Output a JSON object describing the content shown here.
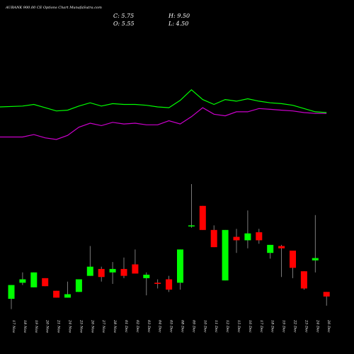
{
  "title": "AUBANK 900.00  CE Options  Chart MunafaSutra.com",
  "ohlc": {
    "c_label": "C: 5.75",
    "h_label": "H: 9.50",
    "o_label": "O: 5.55",
    "l_label": "L: 4.50"
  },
  "colors": {
    "background": "#000000",
    "up": "#00ff00",
    "down": "#ff0000",
    "wick": "#999999",
    "line1": "#00ff00",
    "line2": "#cc00cc",
    "text": "#ffffff"
  },
  "chart_data": {
    "type": "candlestick",
    "title": "AUBANK 900.00  CE Options  Chart MunafaSutra.com",
    "categories": [
      "17 Nov",
      "18 Nov",
      "19 Nov",
      "20 Nov",
      "21 Nov",
      "24 Nov",
      "25 Nov",
      "26 Nov",
      "27 Nov",
      "28 Nov",
      "01 Dec",
      "02 Dec",
      "03 Dec",
      "04 Dec",
      "05 Dec",
      "08 Dec",
      "09 Dec",
      "10 Dec",
      "11 Dec",
      "12 Dec",
      "15 Dec",
      "16 Dec",
      "17 Dec",
      "18 Dec",
      "19 Dec",
      "22 Dec",
      "23 Dec",
      "24 Dec",
      "26 Dec"
    ],
    "candles": [
      {
        "o": 2.2,
        "h": 3.4,
        "l": 1.3,
        "c": 3.4
      },
      {
        "o": 3.6,
        "h": 4.5,
        "l": 3.4,
        "c": 3.9
      },
      {
        "o": 3.2,
        "h": 4.5,
        "l": 3.2,
        "c": 4.5
      },
      {
        "o": 4.0,
        "h": 4.0,
        "l": 3.3,
        "c": 3.3
      },
      {
        "o": 2.9,
        "h": 2.9,
        "l": 2.3,
        "c": 2.3
      },
      {
        "o": 2.3,
        "h": 3.7,
        "l": 2.3,
        "c": 2.6
      },
      {
        "o": 2.8,
        "h": 3.9,
        "l": 2.8,
        "c": 3.9
      },
      {
        "o": 4.2,
        "h": 6.8,
        "l": 4.2,
        "c": 5.0
      },
      {
        "o": 4.8,
        "h": 5.0,
        "l": 3.7,
        "c": 4.1
      },
      {
        "o": 4.5,
        "h": 5.4,
        "l": 3.5,
        "c": 4.8
      },
      {
        "o": 4.8,
        "h": 5.8,
        "l": 4.0,
        "c": 4.2
      },
      {
        "o": 5.2,
        "h": 6.5,
        "l": 4.5,
        "c": 4.4
      },
      {
        "o": 4.0,
        "h": 4.5,
        "l": 2.5,
        "c": 4.3
      },
      {
        "o": 3.6,
        "h": 3.9,
        "l": 3.1,
        "c": 3.5
      },
      {
        "o": 3.9,
        "h": 4.2,
        "l": 2.8,
        "c": 3.0
      },
      {
        "o": 3.6,
        "h": 6.5,
        "l": 3.0,
        "c": 6.5
      },
      {
        "o": 8.6,
        "h": 12.2,
        "l": 8.4,
        "c": 8.6
      },
      {
        "o": 10.3,
        "h": 10.3,
        "l": 8.2,
        "c": 8.2
      },
      {
        "o": 8.2,
        "h": 8.6,
        "l": 6.7,
        "c": 6.7
      },
      {
        "o": 3.8,
        "h": 8.2,
        "l": 3.8,
        "c": 8.2
      },
      {
        "o": 7.6,
        "h": 8.3,
        "l": 6.2,
        "c": 7.3
      },
      {
        "o": 7.3,
        "h": 9.9,
        "l": 6.6,
        "c": 7.9
      },
      {
        "o": 8.0,
        "h": 8.3,
        "l": 7.0,
        "c": 7.3
      },
      {
        "o": 6.2,
        "h": 6.9,
        "l": 5.7,
        "c": 6.9
      },
      {
        "o": 6.8,
        "h": 6.9,
        "l": 4.1,
        "c": 6.6
      },
      {
        "o": 6.4,
        "h": 6.4,
        "l": 4.0,
        "c": 4.9
      },
      {
        "o": 4.6,
        "h": 4.6,
        "l": 3.0,
        "c": 3.1
      },
      {
        "o": 5.55,
        "h": 9.5,
        "l": 4.5,
        "c": 5.75
      },
      {
        "o": 2.8,
        "h": 2.8,
        "l": 1.6,
        "c": 2.4
      }
    ],
    "series": [
      {
        "values": [
          60,
          61,
          63,
          59,
          55,
          56,
          61,
          65,
          61,
          64,
          63,
          63,
          62,
          60,
          59,
          68,
          81,
          69,
          63,
          69,
          67,
          70,
          67,
          65,
          64,
          62,
          58,
          54,
          53
        ]
      },
      {
        "values": [
          23,
          23,
          26,
          22,
          20,
          25,
          35,
          40,
          37,
          41,
          39,
          40,
          38,
          38,
          43,
          39,
          48,
          59,
          51,
          49,
          54,
          54,
          58,
          57,
          56,
          55,
          53,
          52,
          52
        ]
      }
    ],
    "grid": false,
    "legend": "none"
  }
}
